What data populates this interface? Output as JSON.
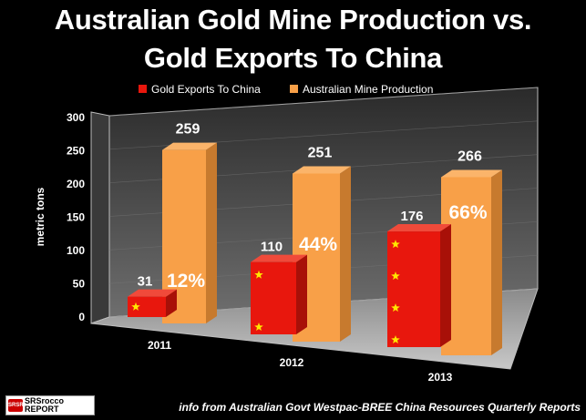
{
  "title_line1": "Australian Gold Mine Production vs.",
  "title_line2": "Gold Exports To China",
  "source_note": "info from Australian Govt Westpac-BREE China Resources Quarterly Reports",
  "logo": {
    "top": "SRSrocco",
    "bottom": "REPORT",
    "badge": "SRSR"
  },
  "colors": {
    "exports": "#e8170d",
    "production": "#f8a048",
    "background": "#000000",
    "flag_star": "#ffe600"
  },
  "chart_data": {
    "type": "bar",
    "title": "Australian Gold Mine Production vs. Gold Exports To China",
    "ylabel": "metric tons",
    "xlabel": "",
    "ylim": [
      0,
      300
    ],
    "yticks": [
      "0",
      "50",
      "100",
      "150",
      "200",
      "250",
      "300"
    ],
    "categories": [
      "2011",
      "2012",
      "2013"
    ],
    "series": [
      {
        "name": "Gold  Exports To China",
        "values": [
          31,
          110,
          176
        ]
      },
      {
        "name": "Australian Mine Production",
        "values": [
          259,
          251,
          266
        ]
      }
    ],
    "value_labels": {
      "exports": [
        "31",
        "110",
        "176"
      ],
      "production": [
        "259",
        "251",
        "266"
      ]
    },
    "percent_labels": [
      "12%",
      "44%",
      "66%"
    ],
    "legend_position": "top"
  }
}
